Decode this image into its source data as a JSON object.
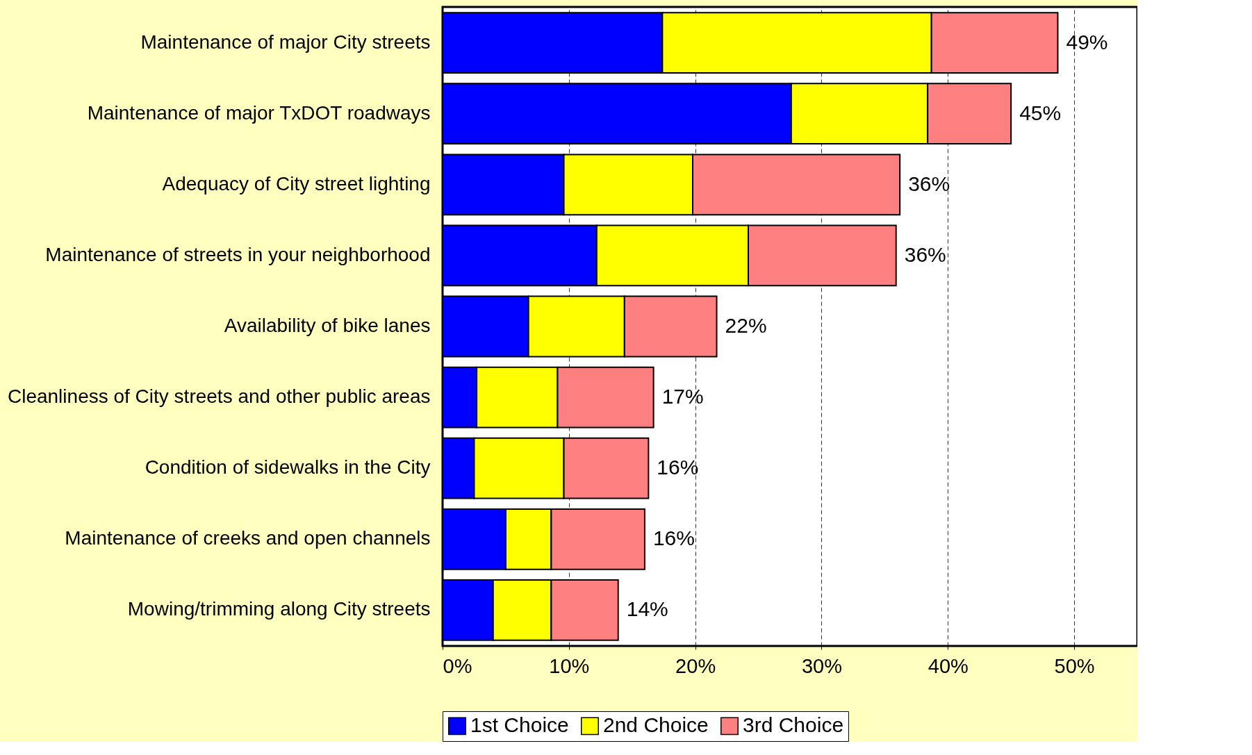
{
  "chart_data": {
    "type": "bar",
    "orientation": "horizontal",
    "stacked": true,
    "categories": [
      "Maintenance of major City streets",
      "Maintenance of major TxDOT roadways",
      "Adequacy of City street lighting",
      "Maintenance of streets in your neighborhood",
      "Availability of bike lanes",
      "Cleanliness of City streets and other public areas",
      "Condition of sidewalks in the City",
      "Maintenance of creeks and open channels",
      "Mowing/trimming along City streets"
    ],
    "series": [
      {
        "name": "1st Choice",
        "color": "#0000ff",
        "values": [
          17.4,
          27.6,
          9.6,
          12.2,
          6.8,
          2.7,
          2.5,
          5.0,
          4.0
        ]
      },
      {
        "name": "2nd Choice",
        "color": "#ffff00",
        "values": [
          21.3,
          10.8,
          10.2,
          12.0,
          7.6,
          6.4,
          7.1,
          3.6,
          4.6
        ]
      },
      {
        "name": "3rd Choice",
        "color": "#ff8080",
        "values": [
          10.0,
          6.6,
          16.4,
          11.7,
          7.3,
          7.6,
          6.7,
          7.4,
          5.3
        ]
      }
    ],
    "totals": [
      "49%",
      "45%",
      "36%",
      "36%",
      "22%",
      "17%",
      "16%",
      "16%",
      "14%"
    ],
    "xlim": [
      0,
      55
    ],
    "xticks": [
      {
        "value": 0,
        "label": "0%"
      },
      {
        "value": 10,
        "label": "10%"
      },
      {
        "value": 20,
        "label": "20%"
      },
      {
        "value": 30,
        "label": "30%"
      },
      {
        "value": 40,
        "label": "40%"
      },
      {
        "value": 50,
        "label": "50%"
      }
    ],
    "grid": "x",
    "legend": "bottom"
  }
}
